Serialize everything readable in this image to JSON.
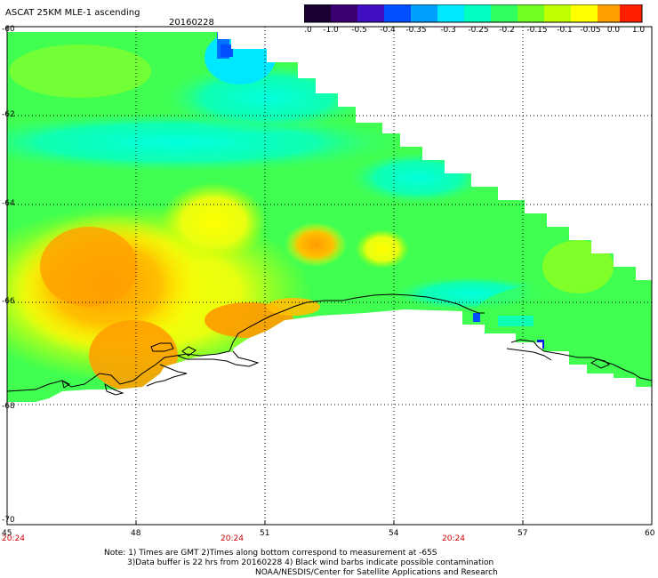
{
  "header": {
    "title": "ASCAT 25KM MLE-1 ascending",
    "date": "20160228"
  },
  "colorbar": {
    "labels": [
      "-3.0",
      "-1.0",
      "-0.5",
      "-0.4",
      "-0.35",
      "-0.3",
      "-0.25",
      "-0.2",
      "-0.15",
      "-0.1",
      "-0.05",
      "0.0",
      "1.0"
    ],
    "colors": [
      "#1a0033",
      "#3c0070",
      "#5000b0",
      "#2030e0",
      "#0070ff",
      "#00b0ff",
      "#00ffee",
      "#00ffb0",
      "#30ff50",
      "#a0ff00",
      "#ffff00",
      "#ffa000",
      "#ff2000"
    ]
  },
  "axes": {
    "lat_labels": [
      "-60",
      "-62",
      "-64",
      "-66",
      "-68",
      "-70"
    ],
    "lon_labels": [
      "45",
      "48",
      "51",
      "54",
      "57",
      "60"
    ],
    "time_labels": [
      "20:24",
      "20:24",
      "20:24"
    ]
  },
  "notes": {
    "line1": "Note: 1) Times are GMT 2)Times along bottom correspond to measurement at -65S",
    "line2": "3)Data buffer is 22 hrs from 20160228 4) Black wind barbs indicate possible contamination",
    "line3": "NOAA/NESDIS/Center for Satellite Applications and Research"
  }
}
